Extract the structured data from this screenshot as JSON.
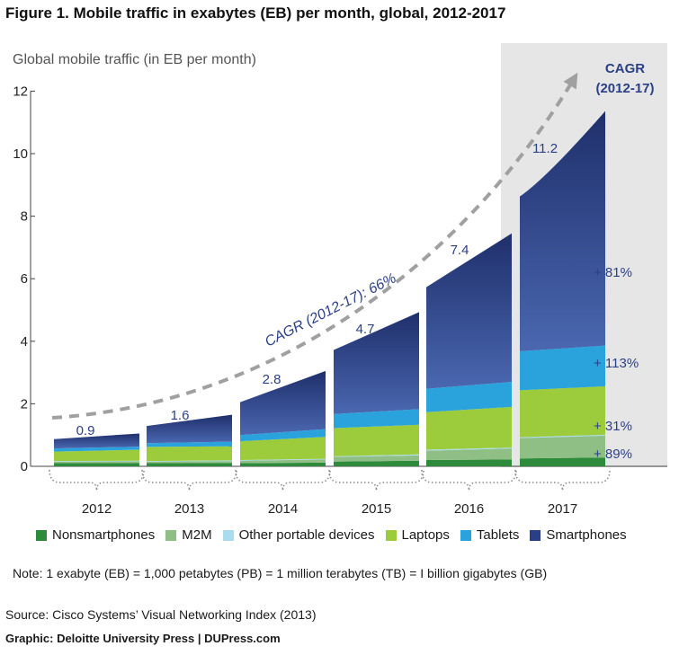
{
  "title": "Figure 1. Mobile traffic in exabytes (EB) per month, global, 2012-2017",
  "note": "Note: 1 exabyte (EB) = 1,000 petabytes (PB) = 1 million terabytes (TB) = I billion gigabytes (GB)",
  "source": "Source: Cisco Systems’ Visual Networking Index (2013)",
  "credit": "Graphic: Deloitte University Press  |  DUPress.com",
  "colors": {
    "Nonsmartphones": "#2e8b3c",
    "M2M": "#8fbf84",
    "Other portable devices": "#a9dcef",
    "Laptops": "#9ccc3c",
    "Tablets": "#2aa3dc",
    "Smartphones": "#2b3f86",
    "highlight_band": "#e6e6e6",
    "cagr_arrow": "#a0a0a0",
    "cagr_text": "#2b3f86"
  },
  "chart_data": {
    "type": "area",
    "title": "Figure 1. Mobile traffic in exabytes (EB) per month, global, 2012-2017",
    "ylabel": "Global mobile traffic (in EB per month)",
    "xlabel": "",
    "ylim": [
      0,
      12
    ],
    "yticks": [
      "0",
      "2",
      "4",
      "6",
      "8",
      "10",
      "12"
    ],
    "categories": [
      "2012",
      "2013",
      "2014",
      "2015",
      "2016",
      "2017"
    ],
    "series": [
      {
        "name": "Nonsmartphones",
        "start": [
          0.1,
          0.1,
          0.1,
          0.15,
          0.2,
          0.25
        ],
        "end": [
          0.1,
          0.1,
          0.12,
          0.18,
          0.22,
          0.28
        ]
      },
      {
        "name": "M2M",
        "start": [
          0.05,
          0.05,
          0.08,
          0.15,
          0.3,
          0.65
        ],
        "end": [
          0.06,
          0.07,
          0.1,
          0.17,
          0.35,
          0.7
        ]
      },
      {
        "name": "Other portable devices",
        "start": [
          0.02,
          0.02,
          0.02,
          0.02,
          0.03,
          0.03
        ],
        "end": [
          0.02,
          0.02,
          0.02,
          0.03,
          0.03,
          0.03
        ]
      },
      {
        "name": "Laptops",
        "start": [
          0.3,
          0.45,
          0.6,
          0.9,
          1.2,
          1.5
        ],
        "end": [
          0.35,
          0.45,
          0.7,
          0.95,
          1.3,
          1.55
        ]
      },
      {
        "name": "Tablets",
        "start": [
          0.1,
          0.12,
          0.2,
          0.45,
          0.75,
          1.25
        ],
        "end": [
          0.1,
          0.15,
          0.25,
          0.5,
          0.8,
          1.3
        ]
      },
      {
        "name": "Smartphones",
        "start": [
          0.3,
          0.55,
          1.05,
          2.05,
          3.25,
          4.95
        ],
        "end": [
          0.42,
          0.86,
          1.86,
          3.1,
          4.75,
          7.5
        ]
      }
    ],
    "totals": [
      "0.9",
      "1.6",
      "2.8",
      "4.7",
      "7.4",
      "11.2"
    ],
    "totals_values": [
      0.9,
      1.6,
      2.8,
      4.7,
      7.4,
      11.2
    ],
    "cagr_label": "CAGR (2012-17): 66%",
    "cagr_column_header": [
      "CAGR",
      "(2012-17)"
    ],
    "cagr_by_segment": [
      {
        "label": "+ 81%",
        "segment": "Smartphones",
        "value": 6.2
      },
      {
        "label": "+ 113%",
        "segment": "Tablets",
        "value": 3.3
      },
      {
        "label": "+ 31%",
        "segment": "Laptops",
        "value": 1.3
      },
      {
        "label": "+ 89%",
        "segment": "M2M",
        "value": 0.4
      }
    ],
    "legend_position": "bottom",
    "grid": false
  }
}
